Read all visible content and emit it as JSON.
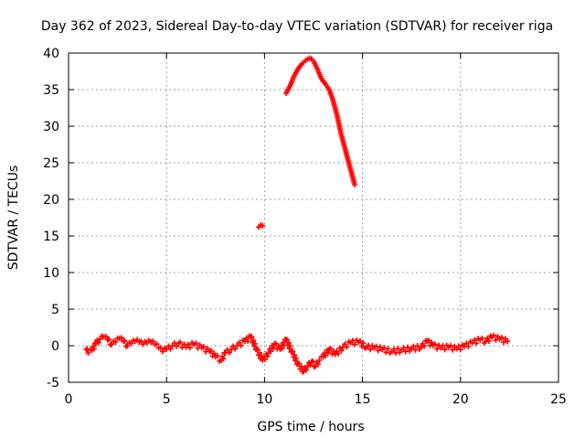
{
  "chart_data": {
    "type": "scatter",
    "title": "Day 362 of 2023, Sidereal Day-to-day VTEC variation (SDTVAR) for receiver riga",
    "xlabel": "GPS time / hours",
    "ylabel": "SDTVAR / TECUs",
    "xlim": [
      0,
      25
    ],
    "ylim": [
      -5,
      40
    ],
    "xticks": [
      0,
      5,
      10,
      15,
      20,
      25
    ],
    "yticks": [
      -5,
      0,
      5,
      10,
      15,
      20,
      25,
      30,
      35,
      40
    ],
    "grid": true,
    "marker": "plus",
    "color": "#ff0000",
    "series": [
      {
        "x": [
          0.9,
          1.0,
          1.2,
          1.4,
          1.6,
          1.8,
          2.0,
          2.2,
          2.4,
          2.6,
          2.8,
          3.0,
          3.2,
          3.4,
          3.6,
          3.8,
          4.0,
          4.2,
          4.4,
          4.6,
          4.8,
          5.0,
          5.3,
          5.6,
          6.0,
          6.4,
          6.8,
          7.2,
          7.5,
          7.8,
          8.0,
          8.3,
          8.6,
          9.0,
          9.3,
          9.6,
          9.9,
          10.2,
          10.5,
          10.8,
          11.1,
          11.4,
          11.7,
          12.0,
          12.2,
          12.4,
          12.6,
          12.8,
          13.0,
          13.3,
          13.6,
          14.0,
          14.4,
          14.8,
          15.2,
          15.6,
          16.0,
          16.5,
          17.0,
          17.5,
          18.0,
          18.3,
          18.6,
          19.0,
          19.4,
          19.8,
          20.2,
          20.6,
          21.0,
          21.3,
          21.6,
          22.0,
          22.4
        ],
        "y": [
          -0.5,
          -1.0,
          -0.6,
          0.3,
          0.9,
          1.2,
          0.8,
          0.2,
          0.5,
          1.0,
          0.6,
          0.0,
          0.3,
          0.6,
          0.5,
          0.2,
          0.4,
          0.5,
          0.2,
          -0.3,
          -0.8,
          -0.5,
          0.0,
          0.3,
          -0.2,
          0.2,
          -0.3,
          -0.8,
          -1.5,
          -2.0,
          -1.0,
          -0.5,
          0.0,
          0.6,
          1.2,
          -0.5,
          -2.0,
          -1.0,
          0.2,
          -0.5,
          0.8,
          -0.8,
          -2.5,
          -3.5,
          -2.8,
          -2.2,
          -2.8,
          -2.0,
          -1.5,
          -0.5,
          -1.2,
          -0.2,
          0.4,
          0.5,
          -0.2,
          -0.3,
          -0.5,
          -0.8,
          -0.6,
          -0.4,
          -0.2,
          0.6,
          0.0,
          -0.3,
          -0.2,
          -0.4,
          -0.1,
          0.4,
          0.8,
          0.6,
          1.2,
          0.9,
          0.6
        ]
      },
      {
        "x": [
          9.7,
          9.8,
          9.9
        ],
        "y": [
          16.2,
          16.5,
          16.4
        ]
      },
      {
        "x": [
          11.1,
          11.3,
          11.5,
          11.7,
          11.9,
          12.1,
          12.3,
          12.4,
          12.5,
          12.7,
          12.9,
          13.1,
          13.3,
          13.5,
          13.7,
          13.9,
          14.1,
          14.3,
          14.4,
          14.5,
          14.6
        ],
        "y": [
          34.5,
          35.5,
          36.8,
          37.8,
          38.5,
          39.0,
          39.3,
          39.2,
          38.9,
          37.8,
          36.5,
          35.8,
          35.0,
          33.5,
          31.5,
          29.0,
          27.0,
          25.0,
          24.0,
          23.0,
          22.0
        ]
      }
    ]
  }
}
